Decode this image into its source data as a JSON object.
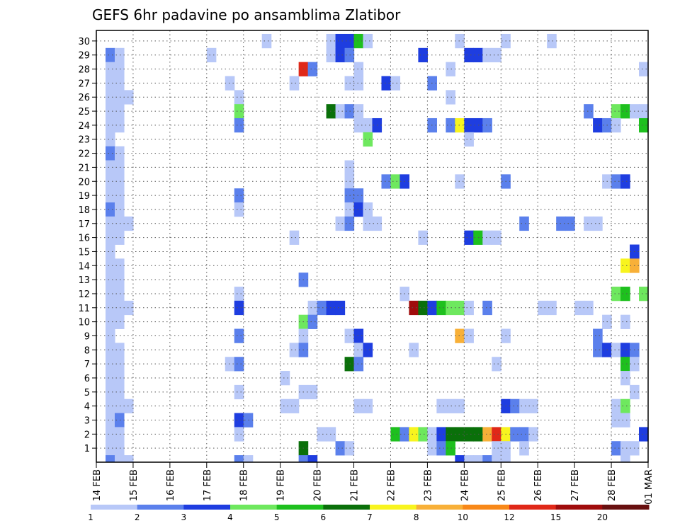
{
  "chart_data": {
    "type": "heatmap",
    "title": "GEFS 6hr padavine po ansamblima Zlatibor",
    "xlabel": "",
    "ylabel": "",
    "x_tick_labels": [
      "14 FEB",
      "15 FEB",
      "16 FEB",
      "17 FEB",
      "18 FEB",
      "19 FEB",
      "20 FEB",
      "21 FEB",
      "22 FEB",
      "23 FEB",
      "24 FEB",
      "25 FEB",
      "26 FEB",
      "27 FEB",
      "28 FEB",
      "01 MAR"
    ],
    "y_tick_labels": [
      "1",
      "2",
      "3",
      "4",
      "5",
      "6",
      "7",
      "8",
      "9",
      "10",
      "11",
      "12",
      "13",
      "14",
      "15",
      "16",
      "17",
      "18",
      "19",
      "20",
      "21",
      "22",
      "23",
      "24",
      "25",
      "26",
      "27",
      "28",
      "29",
      "30"
    ],
    "x_range_days": [
      0,
      15
    ],
    "step_hours": 6,
    "ensemble_members": 30,
    "grid": true,
    "legend": {
      "placement": "bottom",
      "boundaries": [
        "1",
        "2",
        "3",
        "4",
        "5",
        "6",
        "7",
        "8",
        "10",
        "12",
        "15",
        "20"
      ],
      "colors": [
        "#b8c8f8",
        "#5b80ec",
        "#1e3de0",
        "#6ee85e",
        "#1ec01e",
        "#0a700a",
        "#f8f41e",
        "#f8b038",
        "#f88818",
        "#e02818",
        "#a00c0c",
        "#681010"
      ]
    },
    "member_cells": [
      {
        "member": 30,
        "cells": [
          [
            19,
            1
          ],
          [
            26,
            1
          ],
          [
            27,
            3
          ],
          [
            28,
            3
          ],
          [
            29,
            5
          ],
          [
            30,
            1
          ],
          [
            40,
            1
          ],
          [
            45,
            1
          ],
          [
            50,
            1
          ]
        ]
      },
      {
        "member": 29,
        "cells": [
          [
            2,
            2
          ],
          [
            3,
            1
          ],
          [
            13,
            1
          ],
          [
            26,
            1
          ],
          [
            27,
            3
          ],
          [
            28,
            2
          ],
          [
            36,
            3
          ],
          [
            41,
            3
          ],
          [
            42,
            3
          ],
          [
            43,
            1
          ],
          [
            44,
            1
          ]
        ]
      },
      {
        "member": 28,
        "cells": [
          [
            2,
            1
          ],
          [
            3,
            1
          ],
          [
            23,
            10
          ],
          [
            24,
            2
          ],
          [
            29,
            1
          ],
          [
            39,
            1
          ],
          [
            60,
            1
          ]
        ]
      },
      {
        "member": 27,
        "cells": [
          [
            2,
            1
          ],
          [
            3,
            1
          ],
          [
            15,
            1
          ],
          [
            22,
            1
          ],
          [
            28,
            1
          ],
          [
            29,
            1
          ],
          [
            32,
            3
          ],
          [
            33,
            1
          ],
          [
            37,
            2
          ]
        ]
      },
      {
        "member": 26,
        "cells": [
          [
            2,
            1
          ],
          [
            3,
            1
          ],
          [
            4,
            1
          ],
          [
            16,
            1
          ],
          [
            39,
            1
          ]
        ]
      },
      {
        "member": 25,
        "cells": [
          [
            2,
            1
          ],
          [
            3,
            1
          ],
          [
            16,
            4
          ],
          [
            26,
            6
          ],
          [
            27,
            1
          ],
          [
            28,
            2
          ],
          [
            29,
            1
          ],
          [
            54,
            2
          ],
          [
            57,
            4
          ],
          [
            58,
            5
          ],
          [
            59,
            1
          ],
          [
            60,
            1
          ]
        ]
      },
      {
        "member": 24,
        "cells": [
          [
            2,
            1
          ],
          [
            3,
            1
          ],
          [
            16,
            2
          ],
          [
            29,
            1
          ],
          [
            30,
            1
          ],
          [
            31,
            3
          ],
          [
            37,
            2
          ],
          [
            39,
            2
          ],
          [
            40,
            7
          ],
          [
            41,
            3
          ],
          [
            42,
            3
          ],
          [
            43,
            2
          ],
          [
            55,
            3
          ],
          [
            56,
            2
          ],
          [
            57,
            1
          ],
          [
            60,
            5
          ]
        ]
      },
      {
        "member": 23,
        "cells": [
          [
            2,
            1
          ],
          [
            30,
            4
          ],
          [
            41,
            1
          ]
        ]
      },
      {
        "member": 22,
        "cells": [
          [
            2,
            2
          ],
          [
            3,
            1
          ]
        ]
      },
      {
        "member": 21,
        "cells": [
          [
            2,
            1
          ],
          [
            3,
            1
          ],
          [
            28,
            1
          ]
        ]
      },
      {
        "member": 20,
        "cells": [
          [
            2,
            1
          ],
          [
            3,
            1
          ],
          [
            28,
            1
          ],
          [
            32,
            2
          ],
          [
            33,
            4
          ],
          [
            34,
            3
          ],
          [
            40,
            1
          ],
          [
            45,
            2
          ],
          [
            56,
            1
          ],
          [
            57,
            2
          ],
          [
            58,
            3
          ]
        ]
      },
      {
        "member": 19,
        "cells": [
          [
            2,
            1
          ],
          [
            3,
            1
          ],
          [
            16,
            2
          ],
          [
            28,
            2
          ],
          [
            29,
            2
          ]
        ]
      },
      {
        "member": 18,
        "cells": [
          [
            2,
            2
          ],
          [
            3,
            1
          ],
          [
            16,
            1
          ],
          [
            28,
            1
          ],
          [
            29,
            3
          ],
          [
            30,
            1
          ]
        ]
      },
      {
        "member": 17,
        "cells": [
          [
            2,
            1
          ],
          [
            3,
            1
          ],
          [
            4,
            1
          ],
          [
            27,
            1
          ],
          [
            28,
            2
          ],
          [
            30,
            1
          ],
          [
            31,
            1
          ],
          [
            47,
            2
          ],
          [
            51,
            2
          ],
          [
            52,
            2
          ],
          [
            54,
            1
          ],
          [
            55,
            1
          ]
        ]
      },
      {
        "member": 16,
        "cells": [
          [
            2,
            1
          ],
          [
            3,
            1
          ],
          [
            22,
            1
          ],
          [
            36,
            1
          ],
          [
            41,
            3
          ],
          [
            42,
            5
          ],
          [
            43,
            1
          ],
          [
            44,
            1
          ]
        ]
      },
      {
        "member": 15,
        "cells": [
          [
            2,
            1
          ],
          [
            59,
            3
          ]
        ]
      },
      {
        "member": 14,
        "cells": [
          [
            2,
            1
          ],
          [
            3,
            1
          ],
          [
            58,
            7
          ],
          [
            59,
            8
          ]
        ]
      },
      {
        "member": 13,
        "cells": [
          [
            2,
            1
          ],
          [
            3,
            1
          ],
          [
            23,
            2
          ]
        ]
      },
      {
        "member": 12,
        "cells": [
          [
            2,
            1
          ],
          [
            3,
            1
          ],
          [
            16,
            1
          ],
          [
            34,
            1
          ],
          [
            57,
            4
          ],
          [
            58,
            5
          ],
          [
            60,
            4
          ]
        ]
      },
      {
        "member": 11,
        "cells": [
          [
            2,
            1
          ],
          [
            3,
            1
          ],
          [
            4,
            1
          ],
          [
            16,
            3
          ],
          [
            24,
            1
          ],
          [
            25,
            2
          ],
          [
            26,
            3
          ],
          [
            27,
            3
          ],
          [
            35,
            11
          ],
          [
            36,
            6
          ],
          [
            37,
            3
          ],
          [
            38,
            5
          ],
          [
            39,
            4
          ],
          [
            40,
            4
          ],
          [
            41,
            1
          ],
          [
            43,
            2
          ],
          [
            49,
            1
          ],
          [
            50,
            1
          ],
          [
            53,
            1
          ],
          [
            54,
            1
          ]
        ]
      },
      {
        "member": 10,
        "cells": [
          [
            2,
            1
          ],
          [
            3,
            1
          ],
          [
            23,
            4
          ],
          [
            24,
            2
          ],
          [
            56,
            1
          ],
          [
            58,
            1
          ]
        ]
      },
      {
        "member": 9,
        "cells": [
          [
            2,
            1
          ],
          [
            16,
            2
          ],
          [
            23,
            1
          ],
          [
            28,
            1
          ],
          [
            29,
            3
          ],
          [
            40,
            8
          ],
          [
            41,
            1
          ],
          [
            45,
            1
          ],
          [
            55,
            2
          ]
        ]
      },
      {
        "member": 8,
        "cells": [
          [
            2,
            1
          ],
          [
            3,
            1
          ],
          [
            22,
            1
          ],
          [
            23,
            2
          ],
          [
            29,
            1
          ],
          [
            30,
            3
          ],
          [
            35,
            1
          ],
          [
            55,
            2
          ],
          [
            56,
            3
          ],
          [
            57,
            1
          ],
          [
            58,
            3
          ],
          [
            59,
            2
          ]
        ]
      },
      {
        "member": 7,
        "cells": [
          [
            2,
            1
          ],
          [
            3,
            1
          ],
          [
            15,
            1
          ],
          [
            16,
            2
          ],
          [
            28,
            6
          ],
          [
            29,
            2
          ],
          [
            44,
            1
          ],
          [
            58,
            5
          ],
          [
            59,
            1
          ]
        ]
      },
      {
        "member": 6,
        "cells": [
          [
            2,
            1
          ],
          [
            3,
            1
          ],
          [
            21,
            1
          ],
          [
            58,
            1
          ]
        ]
      },
      {
        "member": 5,
        "cells": [
          [
            2,
            1
          ],
          [
            3,
            1
          ],
          [
            16,
            1
          ],
          [
            23,
            1
          ],
          [
            24,
            1
          ],
          [
            59,
            1
          ]
        ]
      },
      {
        "member": 4,
        "cells": [
          [
            2,
            1
          ],
          [
            3,
            1
          ],
          [
            4,
            1
          ],
          [
            21,
            1
          ],
          [
            22,
            1
          ],
          [
            29,
            1
          ],
          [
            30,
            1
          ],
          [
            38,
            1
          ],
          [
            39,
            1
          ],
          [
            40,
            1
          ],
          [
            45,
            3
          ],
          [
            46,
            2
          ],
          [
            47,
            1
          ],
          [
            48,
            1
          ],
          [
            57,
            1
          ],
          [
            58,
            4
          ]
        ]
      },
      {
        "member": 3,
        "cells": [
          [
            2,
            1
          ],
          [
            3,
            2
          ],
          [
            16,
            3
          ],
          [
            17,
            2
          ],
          [
            57,
            1
          ],
          [
            58,
            1
          ]
        ]
      },
      {
        "member": 2,
        "cells": [
          [
            2,
            1
          ],
          [
            3,
            1
          ],
          [
            16,
            1
          ],
          [
            25,
            1
          ],
          [
            26,
            1
          ],
          [
            33,
            5
          ],
          [
            34,
            2
          ],
          [
            35,
            7
          ],
          [
            36,
            4
          ],
          [
            37,
            1
          ],
          [
            38,
            3
          ],
          [
            39,
            6
          ],
          [
            40,
            6
          ],
          [
            41,
            6
          ],
          [
            42,
            6
          ],
          [
            43,
            8
          ],
          [
            44,
            10
          ],
          [
            45,
            7
          ],
          [
            46,
            2
          ],
          [
            47,
            2
          ],
          [
            48,
            1
          ],
          [
            60,
            3
          ]
        ]
      },
      {
        "member": 1,
        "cells": [
          [
            2,
            1
          ],
          [
            3,
            1
          ],
          [
            23,
            6
          ],
          [
            27,
            2
          ],
          [
            28,
            1
          ],
          [
            37,
            1
          ],
          [
            38,
            2
          ],
          [
            39,
            5
          ],
          [
            44,
            1
          ],
          [
            45,
            1
          ],
          [
            47,
            1
          ],
          [
            57,
            2
          ],
          [
            58,
            1
          ],
          [
            59,
            1
          ]
        ]
      },
      {
        "member": 0,
        "cells": [
          [
            2,
            2
          ],
          [
            3,
            1
          ],
          [
            4,
            1
          ],
          [
            16,
            2
          ],
          [
            17,
            1
          ],
          [
            23,
            2
          ],
          [
            24,
            3
          ],
          [
            40,
            3
          ],
          [
            41,
            1
          ],
          [
            42,
            1
          ],
          [
            43,
            2
          ],
          [
            44,
            1
          ],
          [
            45,
            1
          ],
          [
            58,
            1
          ]
        ]
      }
    ]
  }
}
